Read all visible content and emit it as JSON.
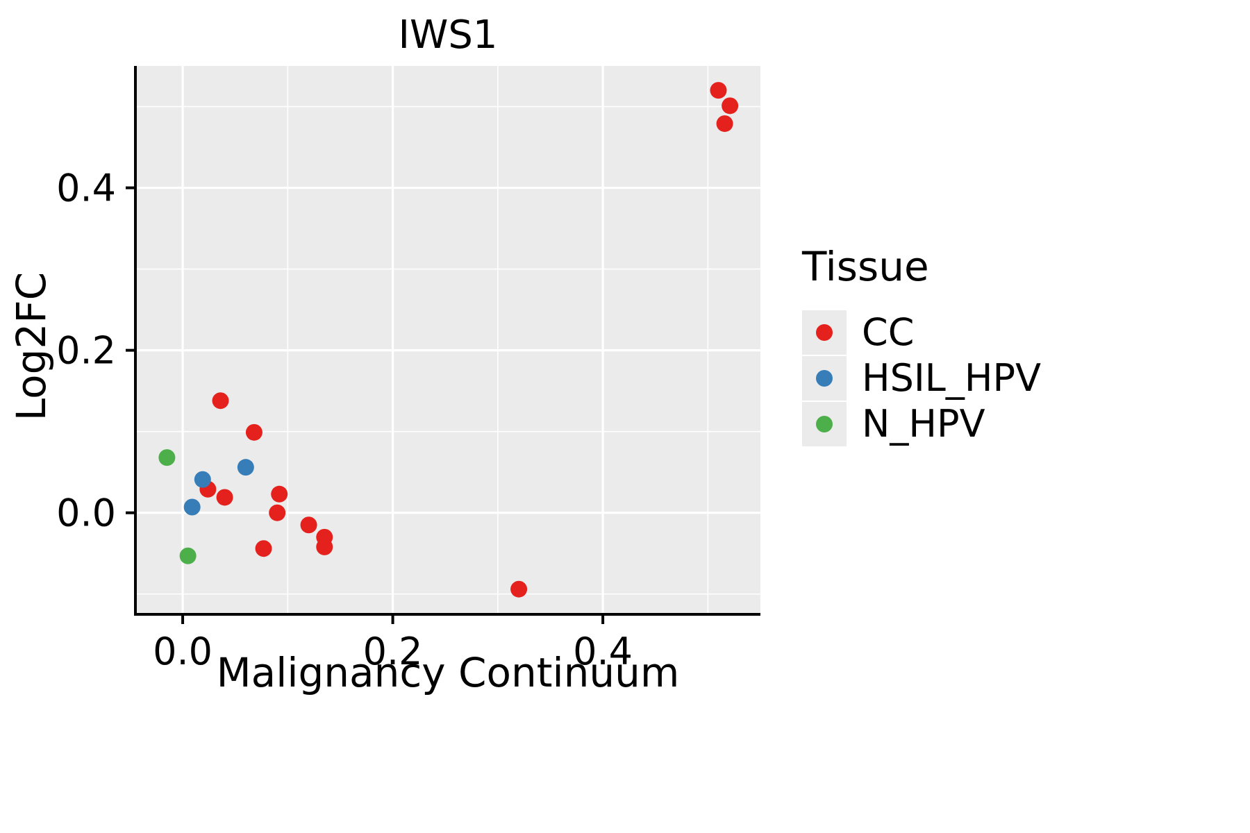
{
  "chart_data": {
    "type": "scatter",
    "title": "IWS1",
    "xlabel": "Malignancy Continuum",
    "ylabel": "Log2FC",
    "xlim": [
      -0.045,
      0.55
    ],
    "ylim": [
      -0.125,
      0.55
    ],
    "x_major_ticks": [
      0.0,
      0.2,
      0.4
    ],
    "x_tick_labels": [
      "0.0",
      "0.2",
      "0.4"
    ],
    "x_minor_ticks": [
      0.1,
      0.3,
      0.5
    ],
    "y_major_ticks": [
      0.0,
      0.2,
      0.4
    ],
    "y_tick_labels": [
      "0.0",
      "0.2",
      "0.4"
    ],
    "y_minor_ticks": [
      -0.1,
      0.1,
      0.3,
      0.5
    ],
    "grid": true,
    "colors": {
      "panel_bg": "#EBEBEB",
      "grid": "#FFFFFF",
      "axis": "#000000",
      "tick_label": "#000000"
    },
    "legend": {
      "title": "Tissue",
      "position": "right",
      "entries": [
        {
          "label": "CC",
          "color": "#E4211C"
        },
        {
          "label": "HSIL_HPV",
          "color": "#377EB8"
        },
        {
          "label": "N_HPV",
          "color": "#4DAF4A"
        }
      ]
    },
    "series": [
      {
        "name": "CC",
        "color": "#E4211C",
        "points": [
          [
            0.51,
            0.52
          ],
          [
            0.521,
            0.501
          ],
          [
            0.516,
            0.479
          ],
          [
            0.036,
            0.138
          ],
          [
            0.068,
            0.099
          ],
          [
            0.024,
            0.029
          ],
          [
            0.04,
            0.019
          ],
          [
            0.092,
            0.023
          ],
          [
            0.09,
            0.0
          ],
          [
            0.12,
            -0.015
          ],
          [
            0.135,
            -0.03
          ],
          [
            0.135,
            -0.042
          ],
          [
            0.077,
            -0.044
          ],
          [
            0.32,
            -0.094
          ]
        ]
      },
      {
        "name": "HSIL_HPV",
        "color": "#377EB8",
        "points": [
          [
            0.019,
            0.041
          ],
          [
            0.06,
            0.056
          ],
          [
            0.009,
            0.007
          ]
        ]
      },
      {
        "name": "N_HPV",
        "color": "#4DAF4A",
        "points": [
          [
            -0.015,
            0.068
          ],
          [
            0.005,
            -0.053
          ]
        ]
      }
    ]
  }
}
